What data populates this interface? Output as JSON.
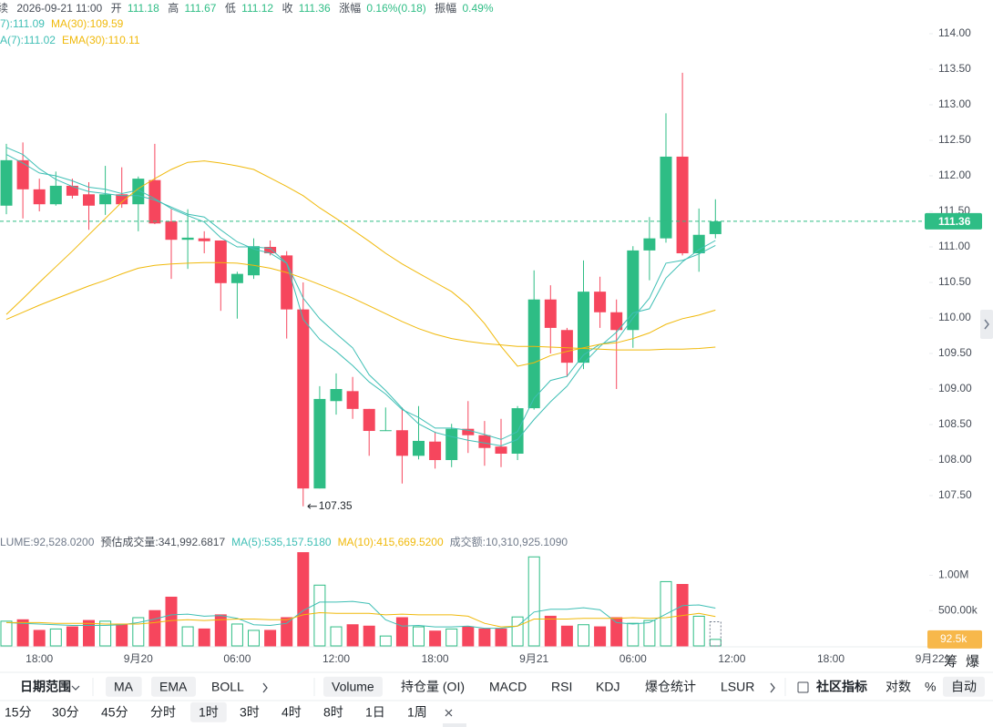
{
  "header": {
    "prefix": "续",
    "time": "2026-09-21 11:00",
    "fields": [
      {
        "label": "开",
        "value": "111.18"
      },
      {
        "label": "高",
        "value": "111.67"
      },
      {
        "label": "低",
        "value": "111.12"
      },
      {
        "label": "收",
        "value": "111.36"
      },
      {
        "label": "涨幅",
        "value": "0.16%(0.18)"
      },
      {
        "label": "振幅",
        "value": "0.49%"
      }
    ]
  },
  "chart_data": {
    "type": "candlestick",
    "up_color": "#2ebd85",
    "down_color": "#f6465d",
    "categories": [
      null,
      null,
      "18:00",
      null,
      null,
      null,
      null,
      null,
      "9月20",
      null,
      null,
      null,
      null,
      null,
      "06:00",
      null,
      null,
      null,
      null,
      null,
      "12:00",
      null,
      null,
      null,
      null,
      null,
      "18:00",
      null,
      null,
      null,
      null,
      null,
      "9月21",
      null,
      null,
      null,
      null,
      null,
      "06:00",
      null,
      null,
      null,
      null,
      null,
      "12:00",
      null,
      null,
      null,
      null,
      null,
      "18:00",
      null,
      null,
      null,
      null,
      null,
      "9月22"
    ],
    "open": [
      111.58,
      112.22,
      111.81,
      111.6,
      111.86,
      111.74,
      111.6,
      111.74,
      111.6,
      111.94,
      111.36,
      111.1,
      111.12,
      111.09,
      110.49,
      110.6,
      111.0,
      110.88,
      110.12,
      107.6,
      108.83,
      108.97,
      108.72,
      108.41,
      108.42,
      108.06,
      108.26,
      108.0,
      108.44,
      108.35,
      108.19,
      108.09,
      108.73,
      110.26,
      109.83,
      109.37,
      110.37,
      110.08,
      109.83,
      110.95,
      111.12,
      112.27,
      110.91,
      111.18,
      null,
      null,
      null,
      null,
      null,
      null,
      null,
      null,
      null,
      null,
      null,
      null,
      null
    ],
    "high": [
      112.45,
      112.47,
      111.96,
      112.06,
      111.96,
      111.91,
      112.14,
      112.12,
      111.99,
      112.45,
      111.53,
      111.53,
      111.22,
      111.09,
      110.65,
      111.12,
      111.09,
      110.94,
      110.5,
      109.04,
      109.22,
      109.17,
      108.72,
      108.74,
      108.74,
      108.76,
      108.4,
      108.51,
      108.83,
      108.55,
      108.58,
      108.76,
      110.67,
      110.46,
      109.86,
      110.81,
      110.58,
      110.26,
      111.01,
      111.42,
      112.88,
      113.45,
      111.54,
      111.67,
      null,
      null,
      null,
      null,
      null,
      null,
      null,
      null,
      null,
      null,
      null,
      null,
      null
    ],
    "low": [
      111.46,
      111.4,
      111.5,
      111.58,
      111.68,
      111.24,
      111.45,
      111.55,
      111.22,
      111.32,
      110.55,
      110.69,
      110.91,
      110.1,
      109.99,
      110.55,
      110.88,
      109.71,
      107.35,
      107.6,
      108.64,
      108.58,
      108.06,
      108.41,
      107.67,
      108.01,
      107.88,
      107.9,
      108.1,
      107.92,
      107.9,
      108.0,
      108.71,
      109.5,
      109.17,
      109.28,
      109.86,
      109.0,
      109.58,
      110.53,
      111.06,
      110.88,
      110.65,
      111.12,
      null,
      null,
      null,
      null,
      null,
      null,
      null,
      null,
      null,
      null,
      null,
      null,
      null
    ],
    "close": [
      112.22,
      111.81,
      111.6,
      111.86,
      111.72,
      111.58,
      111.74,
      111.6,
      111.96,
      111.33,
      111.1,
      111.13,
      111.08,
      110.49,
      110.62,
      111.01,
      110.91,
      110.12,
      107.6,
      108.86,
      109.0,
      108.72,
      108.41,
      108.42,
      108.06,
      108.27,
      108.0,
      108.44,
      108.35,
      108.17,
      108.09,
      108.73,
      110.26,
      109.86,
      109.37,
      110.37,
      110.08,
      109.83,
      110.95,
      111.12,
      112.27,
      110.91,
      111.17,
      111.36,
      null,
      null,
      null,
      null,
      null,
      null,
      null,
      null,
      null,
      null,
      null,
      null,
      null
    ],
    "ma_series": [
      {
        "name": "7):111.09",
        "color": "#3fbfb5",
        "values": [
          112.4,
          112.3,
          112.1,
          111.95,
          111.85,
          111.78,
          111.75,
          111.72,
          111.72,
          111.66,
          111.56,
          111.46,
          111.42,
          111.24,
          111.07,
          110.97,
          110.91,
          110.77,
          110.28,
          109.99,
          109.78,
          109.58,
          109.2,
          108.98,
          108.73,
          108.51,
          108.39,
          108.33,
          108.28,
          108.24,
          108.2,
          108.29,
          108.57,
          108.82,
          109.04,
          109.36,
          109.6,
          109.8,
          110.07,
          110.13,
          110.56,
          110.79,
          110.96,
          111.09,
          null,
          null,
          null,
          null,
          null,
          null,
          null,
          null,
          null,
          null,
          null,
          null,
          null
        ]
      },
      {
        "name": "MA(30):109.59",
        "color": "#f0b90b",
        "values": [
          109.98,
          110.08,
          110.18,
          110.27,
          110.36,
          110.45,
          110.53,
          110.62,
          110.7,
          110.74,
          110.76,
          110.77,
          110.78,
          110.78,
          110.77,
          110.74,
          110.7,
          110.64,
          110.56,
          110.47,
          110.38,
          110.28,
          110.17,
          110.06,
          109.95,
          109.85,
          109.77,
          109.71,
          109.67,
          109.64,
          109.62,
          109.6,
          109.6,
          109.59,
          109.58,
          109.57,
          109.56,
          109.55,
          109.55,
          109.55,
          109.56,
          109.56,
          109.57,
          109.59,
          null,
          null,
          null,
          null,
          null,
          null,
          null,
          null,
          null,
          null,
          null,
          null,
          null
        ]
      }
    ],
    "ema_series": [
      {
        "name": "A(7):111.02",
        "color": "#3fbfb5",
        "values": [
          112.3,
          112.18,
          112.04,
          112.0,
          111.93,
          111.84,
          111.81,
          111.75,
          111.8,
          111.68,
          111.54,
          111.44,
          111.35,
          111.13,
          111.0,
          111.0,
          110.98,
          110.77,
          109.98,
          109.7,
          109.53,
          109.33,
          109.1,
          108.93,
          108.71,
          108.6,
          108.45,
          108.45,
          108.42,
          108.36,
          108.29,
          108.4,
          108.87,
          109.12,
          109.18,
          109.48,
          109.63,
          109.68,
          110.0,
          110.28,
          110.77,
          110.81,
          110.9,
          111.02,
          null,
          null,
          null,
          null,
          null,
          null,
          null,
          null,
          null,
          null,
          null,
          null,
          null
        ]
      },
      {
        "name": "EMA(30):110.11",
        "color": "#f0b90b",
        "values": [
          110.05,
          110.27,
          110.5,
          110.72,
          110.94,
          111.17,
          111.4,
          111.63,
          111.82,
          111.96,
          112.09,
          112.19,
          112.21,
          112.18,
          112.14,
          112.09,
          111.97,
          111.85,
          111.72,
          111.55,
          111.4,
          111.24,
          111.08,
          110.91,
          110.76,
          110.63,
          110.5,
          110.37,
          110.18,
          109.92,
          109.6,
          109.32,
          109.37,
          109.47,
          109.53,
          109.58,
          109.63,
          109.65,
          109.71,
          109.79,
          109.91,
          109.99,
          110.04,
          110.11,
          null,
          null,
          null,
          null,
          null,
          null,
          null,
          null,
          null,
          null,
          null,
          null,
          null
        ]
      }
    ],
    "ylim": [
      107.0,
      114.5
    ],
    "yticks": [
      {
        "value": 114,
        "label": "114.00"
      },
      {
        "value": 113.5,
        "label": "113.50"
      },
      {
        "value": 113,
        "label": "113.00"
      },
      {
        "value": 112.5,
        "label": "112.50"
      },
      {
        "value": 112,
        "label": "112.00"
      },
      {
        "value": 111.5,
        "label": "111.50"
      },
      {
        "value": 111,
        "label": "111.00"
      },
      {
        "value": 110.5,
        "label": "110.50"
      },
      {
        "value": 110,
        "label": "110.00"
      },
      {
        "value": 109.5,
        "label": "109.50"
      },
      {
        "value": 109,
        "label": "109.00"
      },
      {
        "value": 108.5,
        "label": "108.50"
      },
      {
        "value": 108,
        "label": "108.00"
      },
      {
        "value": 107.5,
        "label": "107.50"
      }
    ],
    "volume": {
      "name": "LUME:92,528.0200",
      "values": [
        350000,
        370000,
        220000,
        240000,
        270000,
        360000,
        350000,
        310000,
        400000,
        500000,
        690000,
        270000,
        240000,
        440000,
        310000,
        220000,
        220000,
        400000,
        1320000,
        860000,
        270000,
        300000,
        280000,
        140000,
        400000,
        270000,
        210000,
        240000,
        270000,
        240000,
        240000,
        410000,
        1260000,
        420000,
        280000,
        300000,
        270000,
        400000,
        320000,
        360000,
        910000,
        870000,
        420000,
        92528.02,
        null,
        null,
        null,
        null,
        null,
        null,
        null,
        null,
        null,
        null,
        null,
        null,
        null
      ],
      "last_label": "92.5k",
      "estimated": {
        "name": "预估成交量:341,992.6817",
        "value": 341992.6817
      },
      "ma_series": [
        {
          "name": "MA(5):535,157.5180",
          "color": "#3fbfb5",
          "values": [
            330000,
            320000,
            310000,
            300000,
            290000,
            290000,
            290000,
            300000,
            330000,
            380000,
            440000,
            450000,
            420000,
            430000,
            390000,
            300000,
            290000,
            320000,
            500000,
            620000,
            620000,
            630000,
            600000,
            370000,
            280000,
            290000,
            270000,
            270000,
            280000,
            250000,
            250000,
            280000,
            480000,
            520000,
            520000,
            540000,
            510000,
            330000,
            310000,
            330000,
            450000,
            570000,
            580000,
            535157.518,
            null,
            null,
            null,
            null,
            null,
            null,
            null,
            null,
            null,
            null,
            null,
            null,
            null
          ]
        },
        {
          "name": "MA(10):415,669.5200",
          "color": "#f0b90b",
          "values": [
            330000,
            330000,
            330000,
            320000,
            320000,
            320000,
            310000,
            310000,
            310000,
            330000,
            360000,
            370000,
            360000,
            370000,
            380000,
            380000,
            370000,
            370000,
            440000,
            470000,
            460000,
            460000,
            460000,
            440000,
            450000,
            440000,
            440000,
            440000,
            420000,
            320000,
            270000,
            280000,
            380000,
            380000,
            380000,
            390000,
            390000,
            390000,
            400000,
            390000,
            400000,
            430000,
            460000,
            415669.52,
            null,
            null,
            null,
            null,
            null,
            null,
            null,
            null,
            null,
            null,
            null,
            null,
            null
          ]
        }
      ],
      "turnover": "成交额:10,310,925.1090",
      "ylim": [
        0,
        1400000
      ],
      "yticks": [
        {
          "value": 1000000,
          "label": "1.00M"
        },
        {
          "value": 500000,
          "label": "500.00k"
        }
      ]
    }
  },
  "corner": [
    "筹",
    "爆"
  ],
  "toolbar": {
    "row1": [
      {
        "text": "日期范围",
        "active": false
      },
      {
        "text": "MA",
        "active": true
      },
      {
        "text": "EMA",
        "active": true
      },
      {
        "text": "BOLL",
        "active": false
      },
      {
        "text": "Volume",
        "active": true
      },
      {
        "text": "持仓量 (OI)",
        "active": false
      },
      {
        "text": "MACD",
        "active": false
      },
      {
        "text": "RSI",
        "active": false
      },
      {
        "text": "KDJ",
        "active": false
      },
      {
        "text": "爆仓统计",
        "active": false
      },
      {
        "text": "LSUR",
        "active": false
      },
      {
        "text": "社区指标",
        "active": false
      },
      {
        "text": "对数",
        "active": false
      },
      {
        "text": "%",
        "active": false
      },
      {
        "text": "自动",
        "active": true
      }
    ],
    "row2": [
      {
        "text": "15分",
        "active": false
      },
      {
        "text": "30分",
        "active": false
      },
      {
        "text": "45分",
        "active": false
      },
      {
        "text": "分时",
        "active": false
      },
      {
        "text": "1时",
        "active": true
      },
      {
        "text": "3时",
        "active": false
      },
      {
        "text": "4时",
        "active": false
      },
      {
        "text": "8时",
        "active": false
      },
      {
        "text": "1日",
        "active": false
      },
      {
        "text": "1周",
        "active": false
      }
    ]
  }
}
